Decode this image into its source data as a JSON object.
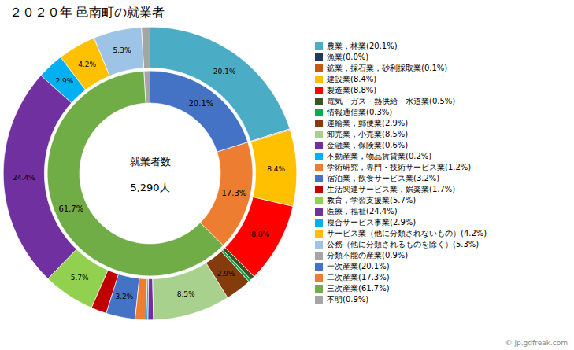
{
  "chart_data": {
    "type": "pie",
    "title": "２０２０年 邑南町の就業者",
    "annotations": [
      "就業者数",
      "5,290人"
    ],
    "caption": "© jp.gdfreak.com",
    "series": [
      {
        "categories": [
          "農業，林業(20.1%)",
          "漁業(0.0%)",
          "鉱業，採石業，砂利採取業(0.1%)",
          "建設業(8.4%)",
          "製造業(8.8%)",
          "電気・ガス・熱供給・水道業(0.5%)",
          "情報通信業(0.3%)",
          "運輸業，郵便業(2.9%)",
          "卸売業，小売業(8.5%)",
          "金融業，保険業(0.6%)",
          "不動産業，物品賃貸業(0.2%)",
          "学術研究，専門・技術サービス業(1.2%)",
          "宿泊業，飲食サービス業(3.2%)",
          "生活関連サービス業，娯楽業(1.7%)",
          "教育，学習支援業(5.7%)",
          "医療，福祉(24.4%)",
          "複合サービス事業(2.9%)",
          "サービス業（他に分類されないもの）(4.2%)",
          "公務（他に分類されるものを除く）(5.3%)",
          "分類不能の産業(0.9%)"
        ],
        "values": [
          20.1,
          0.01,
          0.1,
          8.4,
          8.8,
          0.5,
          0.3,
          2.9,
          8.5,
          0.6,
          0.2,
          1.2,
          3.2,
          1.7,
          5.7,
          24.4,
          2.9,
          4.2,
          5.3,
          0.9
        ],
        "value_labels": [
          "20.1%",
          null,
          null,
          "8.4%",
          "8.8%",
          null,
          null,
          "2.9%",
          "8.5%",
          null,
          null,
          null,
          "3.2%",
          null,
          "5.7%",
          "24.4%",
          "2.9%",
          "4.2%",
          "5.3%",
          null
        ],
        "colors": [
          "#4bacc6",
          "#1f3864",
          "#c55a11",
          "#ffc000",
          "#ff0000",
          "#375623",
          "#00b050",
          "#843c0c",
          "#a9d18e",
          "#7030a0",
          "#00b0f0",
          "#ed7d31",
          "#4472c4",
          "#c00000",
          "#92d050",
          "#7030a0",
          "#00b0f0",
          "#ffc000",
          "#9dc3e6",
          "#a5a5a5"
        ]
      },
      {
        "categories": [
          "一次産業(20.1%)",
          "二次産業(17.3%)",
          "三次産業(61.7%)",
          "不明(0.9%)"
        ],
        "values": [
          20.1,
          17.3,
          61.7,
          0.9
        ],
        "value_labels": [
          "20.1%",
          "17.3%",
          "61.7%",
          null
        ],
        "colors": [
          "#4472c4",
          "#ed7d31",
          "#70ad47",
          "#a5a5a5"
        ]
      }
    ],
    "data_labels": true,
    "legend": "right"
  }
}
